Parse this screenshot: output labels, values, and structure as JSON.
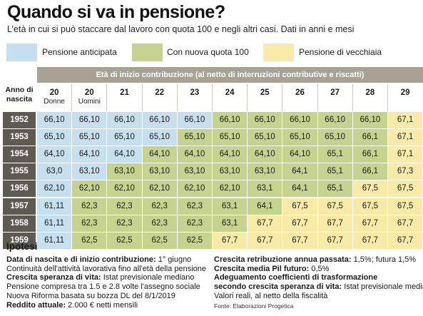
{
  "title": "Quando si va in pensione?",
  "subtitle": "L’età in cui si può staccare dal lavoro con quota 100 e negli altri casi. Dati in anni e mesi",
  "legend": [
    {
      "label": "Pensione anticipata",
      "color": "#c7e0ef"
    },
    {
      "label": "Con nuova quota 100",
      "color": "#c4d48e"
    },
    {
      "label": "Pensione di vecchiaia",
      "color": "#f8eba8"
    }
  ],
  "table": {
    "header_band": "Età di inizio contribuzione (al netto di interruzioni contributive e riscatti)",
    "row_header": "Anno di nascita",
    "columns": [
      {
        "num": "20",
        "sub": "Donne"
      },
      {
        "num": "20",
        "sub": "Uomini"
      },
      {
        "num": "21",
        "sub": ""
      },
      {
        "num": "22",
        "sub": ""
      },
      {
        "num": "23",
        "sub": ""
      },
      {
        "num": "24",
        "sub": ""
      },
      {
        "num": "25",
        "sub": ""
      },
      {
        "num": "26",
        "sub": ""
      },
      {
        "num": "27",
        "sub": ""
      },
      {
        "num": "28",
        "sub": ""
      },
      {
        "num": "29",
        "sub": ""
      }
    ],
    "rows": [
      {
        "year": "1952",
        "values": [
          "66,10",
          "66,10",
          "66,10",
          "66,10",
          "66,10",
          "66,10",
          "66,10",
          "66,10",
          "66,10",
          "66,10",
          "67,1"
        ],
        "types": [
          "a",
          "a",
          "a",
          "a",
          "a",
          "q",
          "q",
          "q",
          "q",
          "q",
          "v"
        ]
      },
      {
        "year": "1953",
        "values": [
          "65,10",
          "65,10",
          "65,10",
          "65,10",
          "65,10",
          "65,10",
          "65,10",
          "65,10",
          "65,10",
          "66,1",
          "67,1"
        ],
        "types": [
          "a",
          "a",
          "a",
          "a",
          "q",
          "q",
          "q",
          "q",
          "q",
          "q",
          "v"
        ]
      },
      {
        "year": "1954",
        "values": [
          "64,10",
          "64,10",
          "64,10",
          "64,10",
          "64,10",
          "64,10",
          "64,10",
          "64,10",
          "65,1",
          "66,1",
          "67,1"
        ],
        "types": [
          "a",
          "a",
          "a",
          "q",
          "q",
          "q",
          "q",
          "q",
          "q",
          "q",
          "v"
        ]
      },
      {
        "year": "1955",
        "values": [
          "63,0",
          "63,10",
          "63,10",
          "63,10",
          "63,10",
          "63,10",
          "63,10",
          "64,1",
          "65,1",
          "66,1",
          "67,3"
        ],
        "types": [
          "a",
          "a",
          "q",
          "q",
          "q",
          "q",
          "q",
          "q",
          "q",
          "q",
          "v"
        ]
      },
      {
        "year": "1956",
        "values": [
          "62,10",
          "62,10",
          "62,10",
          "62,10",
          "62,10",
          "62,10",
          "63,1",
          "64,1",
          "65,1",
          "67,5",
          "67,5"
        ],
        "types": [
          "a",
          "q",
          "q",
          "q",
          "q",
          "q",
          "q",
          "q",
          "q",
          "v",
          "v"
        ]
      },
      {
        "year": "1957",
        "values": [
          "61,11",
          "62,3",
          "62,3",
          "62,3",
          "62,3",
          "63,1",
          "64,1",
          "67,5",
          "67,5",
          "67,5",
          "67,5"
        ],
        "types": [
          "a",
          "q",
          "q",
          "q",
          "q",
          "q",
          "q",
          "v",
          "v",
          "v",
          "v"
        ]
      },
      {
        "year": "1958",
        "values": [
          "61,11",
          "62,3",
          "62,3",
          "62,3",
          "62,3",
          "63,1",
          "67,7",
          "67,7",
          "67,7",
          "67,7",
          "67,7"
        ],
        "types": [
          "a",
          "q",
          "q",
          "q",
          "q",
          "q",
          "v",
          "v",
          "v",
          "v",
          "v"
        ]
      },
      {
        "year": "1959",
        "values": [
          "61,11",
          "62,5",
          "62,5",
          "62,5",
          "62,5",
          "67,7",
          "67,7",
          "67,7",
          "67,7",
          "67,7",
          "67,7"
        ],
        "types": [
          "a",
          "q",
          "q",
          "q",
          "q",
          "v",
          "v",
          "v",
          "v",
          "v",
          "v"
        ]
      }
    ]
  },
  "cell_colors": {
    "a": "#c7e0ef",
    "q": "#c4d48e",
    "v": "#f8eba8"
  },
  "ipotesi": {
    "heading": "Ipotesi",
    "left": [
      {
        "bold": "Data di nascita e di inizio contribuzione:",
        "text": " 1° giugno"
      },
      {
        "bold": "",
        "text": "Continuità dell'attività lavorativa fino all'età della pensione"
      },
      {
        "bold": "Crescita speranza di vita:",
        "text": " Istat previsionale mediano"
      },
      {
        "bold": "",
        "text": "Pensione compresa tra 1.5 e 2.8 volte l'assegno sociale"
      },
      {
        "bold": "",
        "text": "Nuova Riforma basata su bozza DL del 8/1/2019"
      },
      {
        "bold": "Reddito attuale:",
        "text": " 2.000 € netti mensili"
      }
    ],
    "right": [
      {
        "bold": "Crescita retribuzione annua passata:",
        "text": " 1,5%; futura 1,5%"
      },
      {
        "bold": "Crescita media Pil futuro:",
        "text": " 0,5%"
      },
      {
        "bold": "Adeguamento coefficienti di trasformazione",
        "text": ""
      },
      {
        "bold": "secondo crescita speranza di vita:",
        "text": " Istat previsionale mediano"
      },
      {
        "bold": "",
        "text": "Valori reali, al netto della fiscalità"
      }
    ],
    "source": "Fonte: Elaborazioni Progetica"
  }
}
